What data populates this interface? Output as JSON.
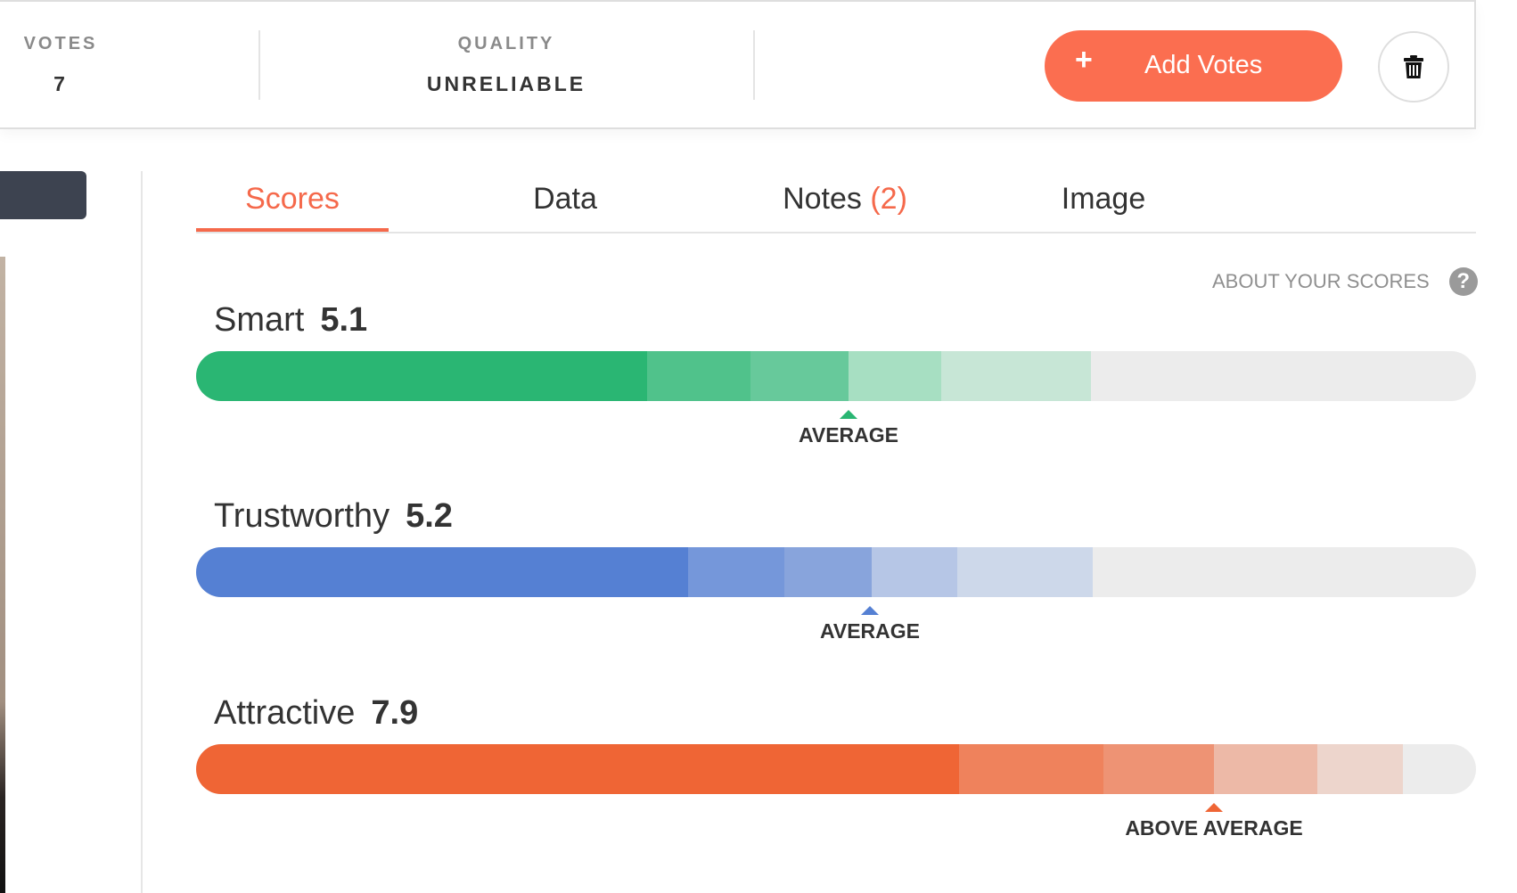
{
  "header": {
    "votes": {
      "label": "VOTES",
      "value": "7"
    },
    "quality": {
      "label": "QUALITY",
      "value": "UNRELIABLE"
    },
    "add_votes": {
      "plus": "+",
      "label": "Add Votes"
    },
    "delete_icon": "trash-icon"
  },
  "tabs": {
    "scores": "Scores",
    "data": "Data",
    "notes": "Notes",
    "notes_count": "(2)",
    "image": "Image",
    "active": "Scores"
  },
  "about_scores": {
    "label": "ABOUT YOUR SCORES",
    "icon": "?"
  },
  "metrics": [
    {
      "name": "Smart",
      "score": "5.1",
      "marker_label": "AVERAGE",
      "color": "#2ab673",
      "score_value": 5.1,
      "marker_position_pct": 51
    },
    {
      "name": "Trustworthy",
      "score": "5.2",
      "marker_label": "AVERAGE",
      "color": "#5580d3",
      "score_value": 5.2,
      "marker_position_pct": 53
    },
    {
      "name": "Attractive",
      "score": "7.9",
      "marker_label": "ABOVE AVERAGE",
      "color": "#ef6535",
      "score_value": 7.9,
      "marker_position_pct": 79
    }
  ]
}
